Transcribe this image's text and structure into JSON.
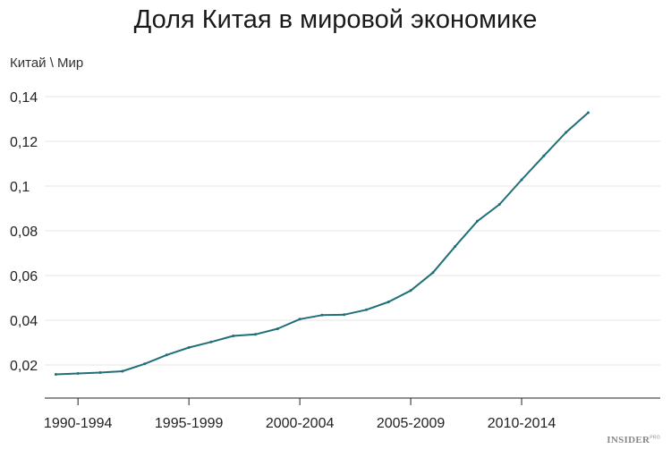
{
  "title": "Доля Китая в мировой экономике",
  "brand": "INSIDER",
  "brand_sup": "PRO",
  "chart_data": {
    "type": "line",
    "title": "Доля Китая в мировой экономике",
    "ylabel": "Китай \\ Мир",
    "xlabel": "",
    "ylim": [
      0.008,
      0.14
    ],
    "yticks": [
      0.02,
      0.04,
      0.06,
      0.08,
      0.1,
      0.12,
      0.14
    ],
    "ytick_labels": [
      "0,02",
      "0,04",
      "0,06",
      "0,08",
      "0,1",
      "0,12",
      "0,14"
    ],
    "xlim": [
      1988.5,
      2016.25
    ],
    "xticks": [
      1990,
      1995,
      2000,
      2005,
      2010
    ],
    "xtick_labels": [
      "1990-1994",
      "1995-1999",
      "2000-2004",
      "2005-2009",
      "2010-2014"
    ],
    "grid": true,
    "color": "#1f6f78",
    "series": [
      {
        "x": [
          1989,
          1990,
          1991,
          1992,
          1993,
          1994,
          1995,
          1996,
          1997,
          1998,
          1999,
          2000,
          2001,
          2002,
          2003,
          2004,
          2005,
          2006,
          2007,
          2008,
          2009,
          2010,
          2011,
          2012,
          2013
        ],
        "values": [
          0.0158,
          0.0162,
          0.0166,
          0.0172,
          0.0205,
          0.0245,
          0.0278,
          0.0303,
          0.033,
          0.0337,
          0.0362,
          0.0405,
          0.0423,
          0.0425,
          0.0447,
          0.0482,
          0.0533,
          0.0613,
          0.073,
          0.0843,
          0.0918,
          0.1028,
          0.1135,
          0.124,
          0.1328
        ]
      }
    ]
  }
}
